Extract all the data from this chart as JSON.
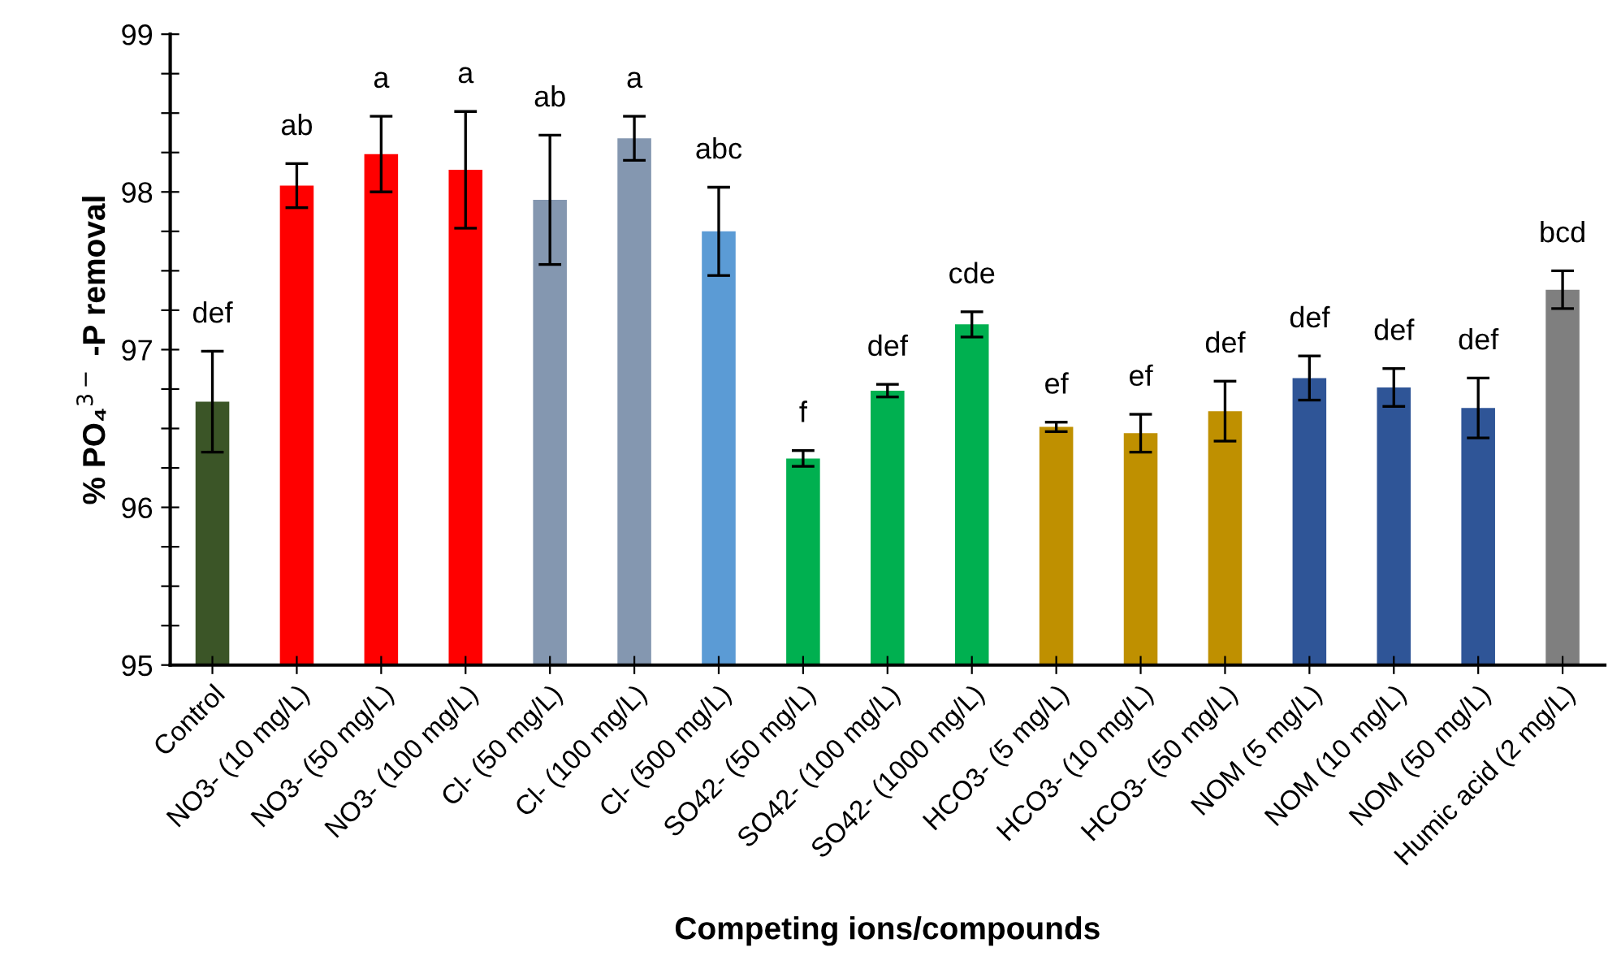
{
  "chart_data": {
    "type": "bar",
    "xlabel": "Competing ions/compounds",
    "ylabel": "% PO₄$^{3−}$ -P removal",
    "categories": [
      "Control",
      "NO3- (10 mg/L)",
      "NO3- (50 mg/L)",
      "NO3- (100 mg/L)",
      "Cl- (50 mg/L)",
      "Cl- (100 mg/L)",
      "Cl- (500 mg/L)",
      "SO42- (50 mg/L)",
      "SO42- (100 mg/L)",
      "SO42- (1000 mg/L)",
      "HCO3- (5 mg/L)",
      "HCO3- (10 mg/L)",
      "HCO3- (50 mg/L)",
      "NOM (5 mg/L)",
      "NOM (10 mg/L)",
      "NOM (50 mg/L)",
      "Humic acid (2 mg/L)"
    ],
    "values": [
      96.67,
      98.04,
      98.24,
      98.14,
      97.95,
      98.34,
      97.75,
      96.31,
      96.74,
      97.16,
      96.51,
      96.47,
      96.61,
      96.82,
      96.76,
      96.63,
      97.38
    ],
    "errors": [
      0.32,
      0.14,
      0.24,
      0.37,
      0.41,
      0.14,
      0.28,
      0.05,
      0.04,
      0.08,
      0.03,
      0.12,
      0.19,
      0.14,
      0.12,
      0.19,
      0.12
    ],
    "colors": [
      "#3b5527",
      "#ff0000",
      "#ff0000",
      "#ff0000",
      "#8497b0",
      "#8497b0",
      "#5b9bd5",
      "#00b050",
      "#00b050",
      "#00b050",
      "#bf9000",
      "#bf9000",
      "#bf9000",
      "#2f5597",
      "#2f5597",
      "#2f5597",
      "#7f7f7f"
    ],
    "ylim": [
      95,
      99
    ],
    "yticks": [
      95,
      {
        "value": 95.25,
        "label": null
      },
      {
        "value": 95.5,
        "label": null
      },
      {
        "value": 95.75,
        "label": null
      },
      96,
      {
        "value": 96.25,
        "label": null
      },
      {
        "value": 96.5,
        "label": null
      },
      {
        "value": 96.75,
        "label": null
      },
      97,
      {
        "value": 97.25,
        "label": null
      },
      {
        "value": 97.5,
        "label": null
      },
      {
        "value": 97.75,
        "label": null
      },
      98,
      {
        "value": 98.25,
        "label": null
      },
      {
        "value": 98.5,
        "label": null
      },
      {
        "value": 98.75,
        "label": null
      },
      99
    ],
    "grid": false,
    "legend": false,
    "annotations": [
      {
        "text": "def",
        "x": "Control",
        "y": 96.99
      },
      {
        "text": "ab",
        "x": "NO3- (10 mg/L)",
        "y": 98.18
      },
      {
        "text": "a",
        "x": "NO3- (50 mg/L)",
        "y": 98.48
      },
      {
        "text": "a",
        "x": "NO3- (100 mg/L)",
        "y": 98.51
      },
      {
        "text": "ab",
        "x": "Cl- (50 mg/L)",
        "y": 98.36
      },
      {
        "text": "a",
        "x": "Cl- (100 mg/L)",
        "y": 98.48
      },
      {
        "text": "abc",
        "x": "Cl- (500 mg/L)",
        "y": 98.03
      },
      {
        "text": "f",
        "x": "SO42- (50 mg/L)",
        "y": 96.36
      },
      {
        "text": "def",
        "x": "SO42- (100 mg/L)",
        "y": 96.78
      },
      {
        "text": "cde",
        "x": "SO42- (1000 mg/L)",
        "y": 97.24
      },
      {
        "text": "ef",
        "x": "HCO3- (5 mg/L)",
        "y": 96.54
      },
      {
        "text": "ef",
        "x": "HCO3- (10 mg/L)",
        "y": 96.59
      },
      {
        "text": "def",
        "x": "HCO3- (50 mg/L)",
        "y": 96.8
      },
      {
        "text": "def",
        "x": "NOM (5 mg/L)",
        "y": 96.96
      },
      {
        "text": "def",
        "x": "NOM (10 mg/L)",
        "y": 96.88
      },
      {
        "text": "def",
        "x": "NOM (50 mg/L)",
        "y": 96.82
      },
      {
        "text": "bcd",
        "x": "Humic acid (2 mg/L)",
        "y": 97.5
      }
    ]
  }
}
